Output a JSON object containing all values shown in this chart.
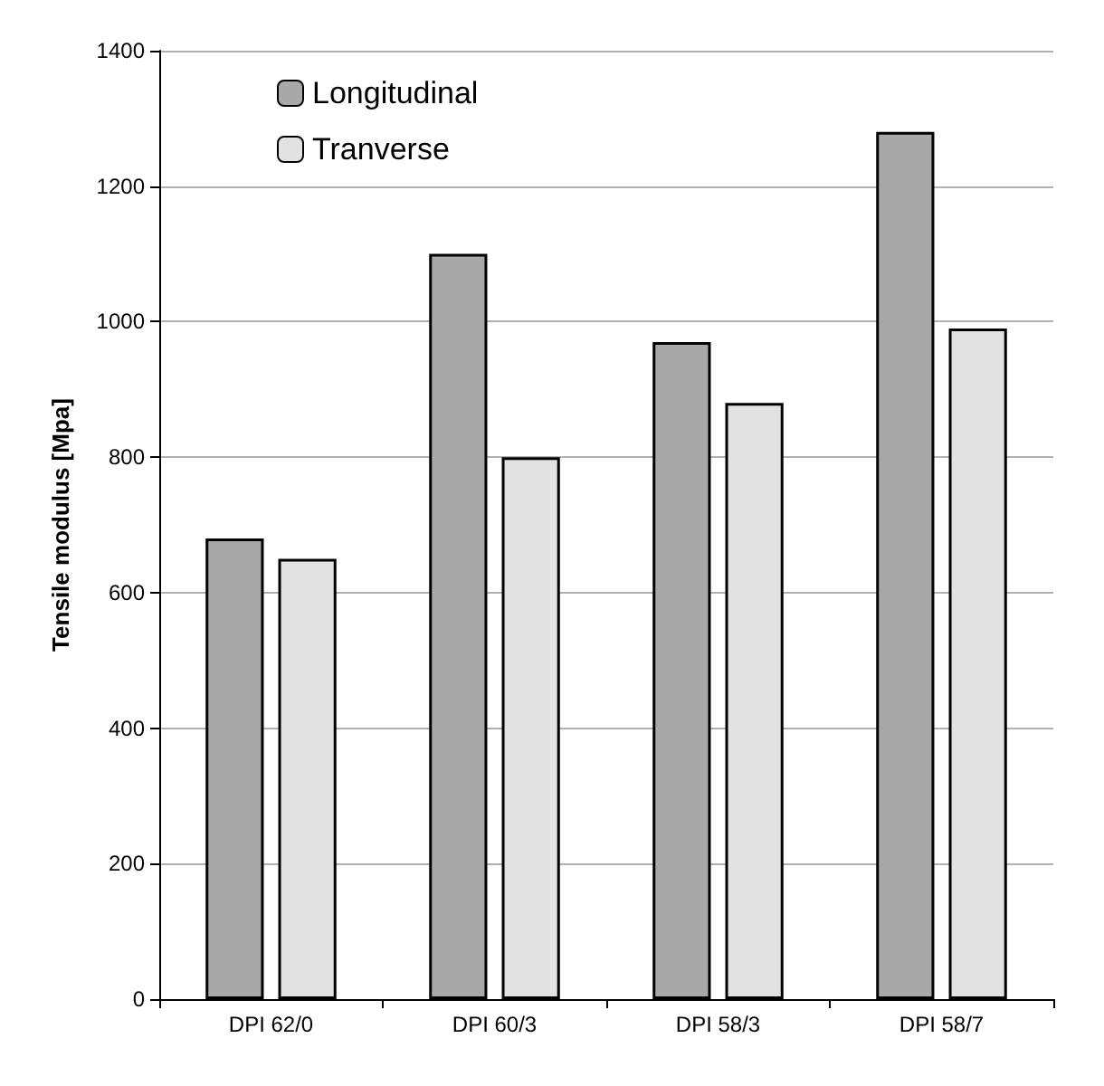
{
  "chart_data": {
    "type": "bar",
    "ylabel": "Tensile modulus [Mpa]",
    "categories": [
      "DPI 62/0",
      "DPI 60/3",
      "DPI 58/3",
      "DPI 58/7"
    ],
    "series": [
      {
        "name": "Longitudinal",
        "color": "#a8a8a8",
        "values": [
          680,
          1100,
          970,
          1280
        ]
      },
      {
        "name": "Tranverse",
        "color": "#e2e2e2",
        "values": [
          650,
          800,
          880,
          990
        ]
      }
    ],
    "ylim": [
      0,
      1400
    ],
    "yticks": [
      0,
      200,
      400,
      600,
      800,
      1000,
      1200,
      1400
    ],
    "grid": "y",
    "legend": "top left"
  }
}
